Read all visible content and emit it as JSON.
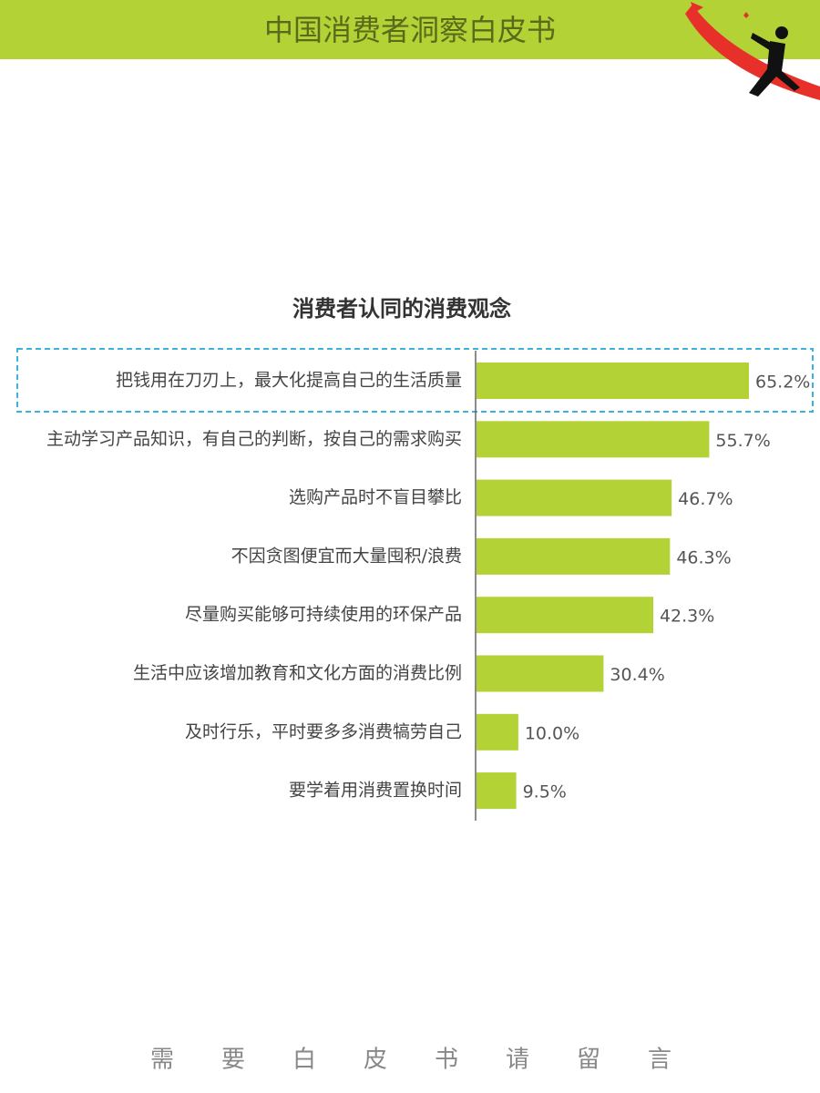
{
  "header": {
    "title": "中国消费者洞察白皮书"
  },
  "chart_data": {
    "type": "hbar",
    "title": "消费者认同的消费观念",
    "categories": [
      "把钱用在刀刃上，最大化提高自己的生活质量",
      "主动学习产品知识，有自己的判断，按自己的需求购买",
      "选购产品时不盲目攀比",
      "不因贪图便宜而大量囤积/浪费",
      "尽量购买能够可持续使用的环保产品",
      "生活中应该增加教育和文化方面的消费比例",
      "及时行乐，平时要多多消费犒劳自己",
      "要学着用消费置换时间"
    ],
    "values": [
      65.2,
      55.7,
      46.7,
      46.3,
      42.3,
      30.4,
      10.0,
      9.5
    ],
    "value_labels": [
      "65.2%",
      "55.7%",
      "46.7%",
      "46.3%",
      "42.3%",
      "30.4%",
      "10.0%",
      "9.5%"
    ],
    "color": "#b2d235"
  },
  "footer": {
    "text": "需要白皮书请留言"
  }
}
